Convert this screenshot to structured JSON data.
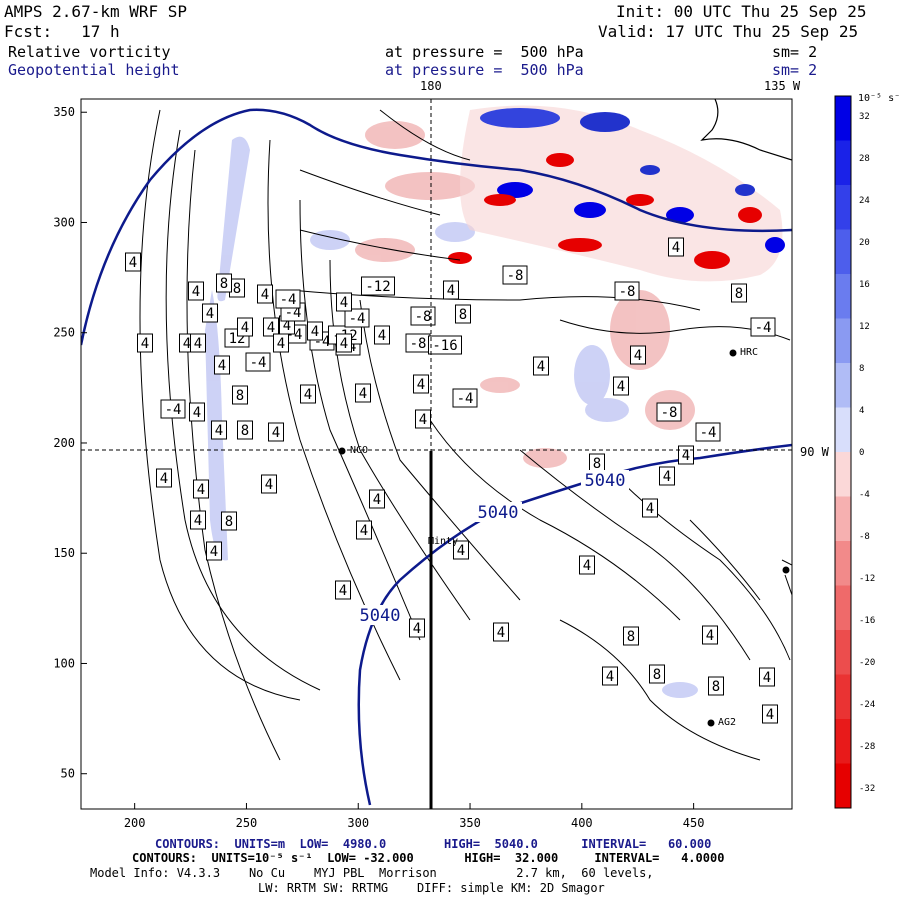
{
  "header": {
    "model": "AMPS 2.67-km WRF SP",
    "fcst": "Fcst:   17 h",
    "init": "Init: 00 UTC Thu 25 Sep 25",
    "valid": "Valid: 17 UTC Thu 25 Sep 25",
    "field1_name": "Relative vorticity",
    "field1_level": "at pressure =  500 hPa",
    "field1_smooth": "sm= 2",
    "field2_name": "Geopotential height",
    "field2_level": "at pressure =  500 hPa",
    "field2_smooth": "sm= 2"
  },
  "map_labels": {
    "lon_180": "180",
    "lon_135w": "135 W",
    "lat_90w": "90 W",
    "stations": [
      "NCO",
      "Minty",
      "HRC",
      "AG2"
    ]
  },
  "colors": {
    "positive": "#0000e6",
    "negative": "#e60000",
    "height_contour": "#0d1a8c"
  },
  "colorbar": {
    "units": "10⁻⁵ s⁻¹",
    "ticks": [
      "32",
      "28",
      "24",
      "20",
      "16",
      "12",
      "8",
      "4",
      "0",
      "-4",
      "-8",
      "-12",
      "-16",
      "-20",
      "-24",
      "-28",
      "-32"
    ]
  },
  "footer": {
    "line1": "CONTOURS:  UNITS=m  LOW=  4980.0        HIGH=  5040.0      INTERVAL=   60.000",
    "line2": "CONTOURS:  UNITS=10⁻⁵ s⁻¹  LOW= -32.000       HIGH=  32.000     INTERVAL=   4.0000",
    "line3": "Model Info: V4.3.3    No Cu    MYJ PBL  Morrison           2.7 km,  60 levels,",
    "line4": "LW: RRTM SW: RRTMG    DIFF: simple KM: 2D Smagor"
  },
  "chart_data": {
    "type": "heatmap",
    "title": "Relative vorticity / Geopotential height at 500 hPa",
    "xlim": [
      176,
      494
    ],
    "ylim": [
      34,
      356
    ],
    "x_ticks": [
      "200",
      "250",
      "300",
      "350",
      "400",
      "450"
    ],
    "y_ticks": [
      "350",
      "300",
      "250",
      "200",
      "150",
      "100",
      "50"
    ],
    "color_levels": [
      -32,
      -28,
      -24,
      -20,
      -16,
      -12,
      -8,
      -4,
      0,
      4,
      8,
      12,
      16,
      20,
      24,
      28,
      32
    ],
    "height_contours": [
      {
        "value": 5040,
        "label": "5040"
      }
    ],
    "height_contour_labels": [
      "5040",
      "5040",
      "5040"
    ],
    "vorticity_labels": [
      {
        "x": 187,
        "y": 343,
        "v": "4"
      },
      {
        "x": 237,
        "y": 338,
        "v": "12"
      },
      {
        "x": 322,
        "y": 341,
        "v": "-4"
      },
      {
        "x": 294,
        "y": 334,
        "v": "-4"
      },
      {
        "x": 287,
        "y": 325,
        "v": "4"
      },
      {
        "x": 348,
        "y": 346,
        "v": "-4"
      },
      {
        "x": 345,
        "y": 335,
        "v": "-12"
      },
      {
        "x": 382,
        "y": 335,
        "v": "4"
      },
      {
        "x": 418,
        "y": 343,
        "v": "-8"
      },
      {
        "x": 445,
        "y": 345,
        "v": "-16"
      },
      {
        "x": 271,
        "y": 327,
        "v": "4"
      },
      {
        "x": 210,
        "y": 313,
        "v": "4"
      },
      {
        "x": 293,
        "y": 312,
        "v": "-4"
      },
      {
        "x": 357,
        "y": 318,
        "v": "-4"
      },
      {
        "x": 423,
        "y": 316,
        "v": "-8"
      },
      {
        "x": 463,
        "y": 314,
        "v": "8"
      },
      {
        "x": 196,
        "y": 291,
        "v": "4"
      },
      {
        "x": 237,
        "y": 288,
        "v": "8"
      },
      {
        "x": 265,
        "y": 294,
        "v": "4"
      },
      {
        "x": 288,
        "y": 299,
        "v": "-4"
      },
      {
        "x": 344,
        "y": 302,
        "v": "4"
      },
      {
        "x": 378,
        "y": 286,
        "v": "-12"
      },
      {
        "x": 451,
        "y": 290,
        "v": "4"
      },
      {
        "x": 515,
        "y": 275,
        "v": "-8"
      },
      {
        "x": 676,
        "y": 247,
        "v": "4"
      },
      {
        "x": 133,
        "y": 262,
        "v": "4"
      },
      {
        "x": 224,
        "y": 283,
        "v": "8"
      },
      {
        "x": 627,
        "y": 291,
        "v": "-8"
      },
      {
        "x": 739,
        "y": 293,
        "v": "8"
      },
      {
        "x": 763,
        "y": 327,
        "v": "-4"
      },
      {
        "x": 145,
        "y": 343,
        "v": "4"
      },
      {
        "x": 198,
        "y": 343,
        "v": "4"
      },
      {
        "x": 245,
        "y": 327,
        "v": "4"
      },
      {
        "x": 281,
        "y": 343,
        "v": "4"
      },
      {
        "x": 315,
        "y": 331,
        "v": "4"
      },
      {
        "x": 344,
        "y": 343,
        "v": "4"
      },
      {
        "x": 638,
        "y": 355,
        "v": "4"
      },
      {
        "x": 173,
        "y": 409,
        "v": "-4"
      },
      {
        "x": 197,
        "y": 412,
        "v": "4"
      },
      {
        "x": 258,
        "y": 362,
        "v": "-4"
      },
      {
        "x": 222,
        "y": 365,
        "v": "4"
      },
      {
        "x": 240,
        "y": 395,
        "v": "8"
      },
      {
        "x": 219,
        "y": 430,
        "v": "4"
      },
      {
        "x": 245,
        "y": 430,
        "v": "8"
      },
      {
        "x": 276,
        "y": 432,
        "v": "4"
      },
      {
        "x": 308,
        "y": 394,
        "v": "4"
      },
      {
        "x": 363,
        "y": 393,
        "v": "4"
      },
      {
        "x": 421,
        "y": 384,
        "v": "4"
      },
      {
        "x": 423,
        "y": 419,
        "v": "4"
      },
      {
        "x": 465,
        "y": 398,
        "v": "-4"
      },
      {
        "x": 541,
        "y": 366,
        "v": "4"
      },
      {
        "x": 621,
        "y": 386,
        "v": "4"
      },
      {
        "x": 669,
        "y": 412,
        "v": "-8"
      },
      {
        "x": 708,
        "y": 432,
        "v": "-4"
      },
      {
        "x": 686,
        "y": 455,
        "v": "4"
      },
      {
        "x": 597,
        "y": 463,
        "v": "8"
      },
      {
        "x": 667,
        "y": 476,
        "v": "4"
      },
      {
        "x": 164,
        "y": 478,
        "v": "4"
      },
      {
        "x": 201,
        "y": 489,
        "v": "4"
      },
      {
        "x": 269,
        "y": 484,
        "v": "4"
      },
      {
        "x": 377,
        "y": 499,
        "v": "4"
      },
      {
        "x": 198,
        "y": 520,
        "v": "4"
      },
      {
        "x": 229,
        "y": 521,
        "v": "8"
      },
      {
        "x": 364,
        "y": 530,
        "v": "4"
      },
      {
        "x": 650,
        "y": 508,
        "v": "4"
      },
      {
        "x": 214,
        "y": 551,
        "v": "4"
      },
      {
        "x": 461,
        "y": 550,
        "v": "4"
      },
      {
        "x": 587,
        "y": 565,
        "v": "4"
      },
      {
        "x": 343,
        "y": 590,
        "v": "4"
      },
      {
        "x": 417,
        "y": 628,
        "v": "4"
      },
      {
        "x": 501,
        "y": 632,
        "v": "4"
      },
      {
        "x": 631,
        "y": 636,
        "v": "8"
      },
      {
        "x": 710,
        "y": 635,
        "v": "4"
      },
      {
        "x": 610,
        "y": 676,
        "v": "4"
      },
      {
        "x": 657,
        "y": 674,
        "v": "8"
      },
      {
        "x": 767,
        "y": 677,
        "v": "4"
      },
      {
        "x": 716,
        "y": 686,
        "v": "8"
      },
      {
        "x": 770,
        "y": 714,
        "v": "4"
      }
    ]
  }
}
